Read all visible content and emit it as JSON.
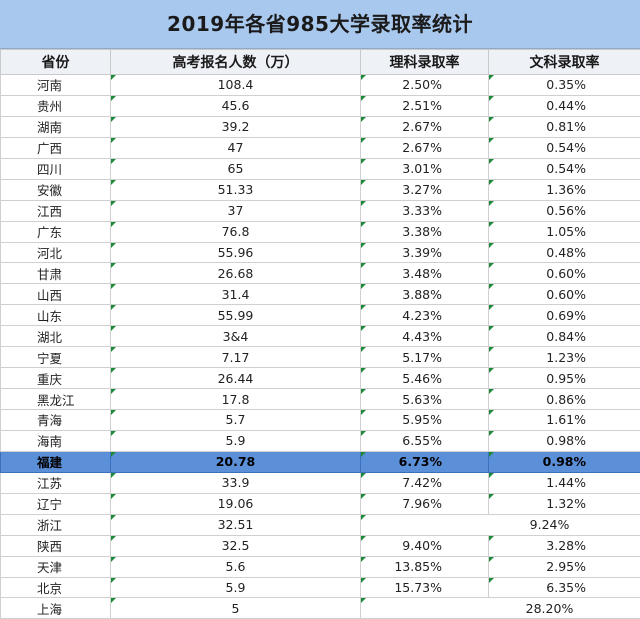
{
  "title": "2019年各省985大学录取率统计",
  "headers": [
    "省份",
    "高考报名人数（万）",
    "理科录取率",
    "文科录取率"
  ],
  "rows": [
    {
      "province": "河南",
      "applicants": "108.4",
      "science": "2.50%",
      "arts": "0.35%"
    },
    {
      "province": "贵州",
      "applicants": "45.6",
      "science": "2.51%",
      "arts": "0.44%"
    },
    {
      "province": "湖南",
      "applicants": "39.2",
      "science": "2.67%",
      "arts": "0.81%"
    },
    {
      "province": "广西",
      "applicants": "47",
      "science": "2.67%",
      "arts": "0.54%"
    },
    {
      "province": "四川",
      "applicants": "65",
      "science": "3.01%",
      "arts": "0.54%"
    },
    {
      "province": "安徽",
      "applicants": "51.33",
      "science": "3.27%",
      "arts": "1.36%"
    },
    {
      "province": "江西",
      "applicants": "37",
      "science": "3.33%",
      "arts": "0.56%"
    },
    {
      "province": "广东",
      "applicants": "76.8",
      "science": "3.38%",
      "arts": "1.05%"
    },
    {
      "province": "河北",
      "applicants": "55.96",
      "science": "3.39%",
      "arts": "0.48%"
    },
    {
      "province": "甘肃",
      "applicants": "26.68",
      "science": "3.48%",
      "arts": "0.60%"
    },
    {
      "province": "山西",
      "applicants": "31.4",
      "science": "3.88%",
      "arts": "0.60%"
    },
    {
      "province": "山东",
      "applicants": "55.99",
      "science": "4.23%",
      "arts": "0.69%"
    },
    {
      "province": "湖北",
      "applicants": "3&4",
      "science": "4.43%",
      "arts": "0.84%"
    },
    {
      "province": "宁夏",
      "applicants": "7.17",
      "science": "5.17%",
      "arts": "1.23%"
    },
    {
      "province": "重庆",
      "applicants": "26.44",
      "science": "5.46%",
      "arts": "0.95%"
    },
    {
      "province": "黑龙江",
      "applicants": "17.8",
      "science": "5.63%",
      "arts": "0.86%"
    },
    {
      "province": "青海",
      "applicants": "5.7",
      "science": "5.95%",
      "arts": "1.61%"
    },
    {
      "province": "海南",
      "applicants": "5.9",
      "science": "6.55%",
      "arts": "0.98%"
    },
    {
      "province": "福建",
      "applicants": "20.78",
      "science": "6.73%",
      "arts": "0.98%",
      "highlight": true
    },
    {
      "province": "江苏",
      "applicants": "33.9",
      "science": "7.42%",
      "arts": "1.44%"
    },
    {
      "province": "辽宁",
      "applicants": "19.06",
      "science": "7.96%",
      "arts": "1.32%"
    },
    {
      "province": "浙江",
      "applicants": "32.51",
      "merged": "9.24%"
    },
    {
      "province": "陕西",
      "applicants": "32.5",
      "science": "9.40%",
      "arts": "3.28%"
    },
    {
      "province": "天津",
      "applicants": "5.6",
      "science": "13.85%",
      "arts": "2.95%"
    },
    {
      "province": "北京",
      "applicants": "5.9",
      "science": "15.73%",
      "arts": "6.35%"
    },
    {
      "province": "上海",
      "applicants": "5",
      "merged": "28.20%"
    }
  ],
  "colors": {
    "title_bg": "#a9c8ee",
    "highlight_row": "#5b8fd8",
    "cell_marker": "#1f8a3b"
  }
}
